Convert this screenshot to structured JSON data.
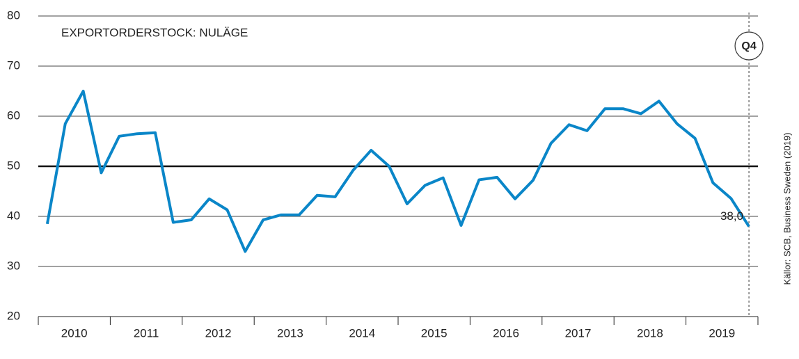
{
  "chart_data": {
    "type": "line",
    "title": "EXPORTORDERSTOCK: NULÄGE",
    "source": "Källor: SCB, Business Sweden (2019)",
    "x": [
      2010.125,
      2010.375,
      2010.625,
      2010.875,
      2011.125,
      2011.375,
      2011.625,
      2011.875,
      2012.125,
      2012.375,
      2012.625,
      2012.875,
      2013.125,
      2013.375,
      2013.625,
      2013.875,
      2014.125,
      2014.375,
      2014.625,
      2014.875,
      2015.125,
      2015.375,
      2015.625,
      2015.875,
      2016.125,
      2016.375,
      2016.625,
      2016.875,
      2017.125,
      2017.375,
      2017.625,
      2017.875,
      2018.125,
      2018.375,
      2018.625,
      2018.875,
      2019.125,
      2019.375,
      2019.625,
      2019.875
    ],
    "series": [
      {
        "name": "Exportorderstock",
        "color": "#0a86c8",
        "values": [
          38.5,
          58.5,
          65,
          48.7,
          56,
          56.5,
          56.7,
          38.8,
          39.3,
          43.5,
          41.3,
          33,
          39.3,
          40.3,
          40.3,
          44.2,
          43.9,
          49.2,
          53.2,
          50,
          42.5,
          46.2,
          47.7,
          38.2,
          47.3,
          47.8,
          43.5,
          47.2,
          54.6,
          58.3,
          57.1,
          61.5,
          61.5,
          60.5,
          63,
          58.5,
          55.6,
          46.7,
          43.6,
          38.0
        ],
        "value_labels": {
          "39": "38,0"
        }
      }
    ],
    "xlim": [
      2010,
      2020
    ],
    "xticks": [
      2010,
      2011,
      2012,
      2013,
      2014,
      2015,
      2016,
      2017,
      2018,
      2019,
      2020
    ],
    "year_labels": [
      {
        "value": 2010.5,
        "label": "2010"
      },
      {
        "value": 2011.5,
        "label": "2011"
      },
      {
        "value": 2012.5,
        "label": "2012"
      },
      {
        "value": 2013.5,
        "label": "2013"
      },
      {
        "value": 2014.5,
        "label": "2014"
      },
      {
        "value": 2015.5,
        "label": "2015"
      },
      {
        "value": 2016.5,
        "label": "2016"
      },
      {
        "value": 2017.5,
        "label": "2017"
      },
      {
        "value": 2018.5,
        "label": "2018"
      },
      {
        "value": 2019.5,
        "label": "2019"
      }
    ],
    "ylim": [
      20,
      80
    ],
    "yticks": [
      20,
      30,
      40,
      50,
      60,
      70,
      80
    ],
    "reference_line": 50,
    "grid": true,
    "marker": {
      "value": 2019.875,
      "label": "Q4"
    }
  }
}
